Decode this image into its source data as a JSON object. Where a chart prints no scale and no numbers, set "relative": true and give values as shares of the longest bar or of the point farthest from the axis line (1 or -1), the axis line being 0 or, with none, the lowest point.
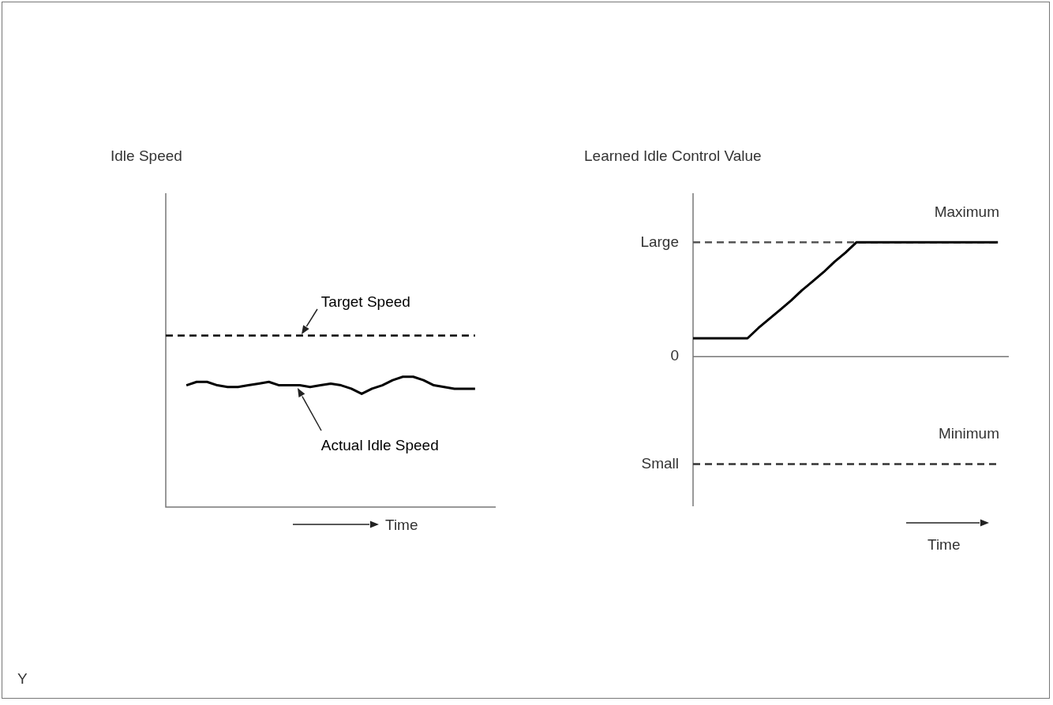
{
  "chart_data": [
    {
      "type": "line",
      "title": "Idle Speed",
      "xlabel": "Time",
      "relative": true,
      "marker": "none",
      "legend": false,
      "annotations": [
        "Y"
      ],
      "categories": [
        null,
        null,
        null,
        null,
        null,
        null,
        null,
        null,
        null,
        null,
        null,
        null,
        null,
        null,
        null,
        null,
        null,
        null,
        null,
        null,
        null,
        null,
        null,
        null,
        null,
        null,
        null,
        null,
        null,
        null,
        null,
        null,
        null
      ],
      "series": [
        {
          "name": "Target Speed",
          "color": "#000000",
          "line_style": "dashed",
          "values": [
            1,
            1,
            1,
            1,
            1,
            1,
            1,
            1,
            1,
            1,
            1,
            1,
            1,
            1,
            1,
            1,
            1,
            1,
            1,
            1,
            1,
            1,
            1,
            1,
            1,
            1,
            1,
            1,
            1,
            1,
            1,
            null,
            null
          ]
        },
        {
          "name": "Actual Idle Speed",
          "color": "#000000",
          "line_style": "solid",
          "values": [
            null,
            null,
            0.71,
            0.73,
            0.73,
            0.71,
            0.7,
            0.7,
            0.71,
            0.72,
            0.73,
            0.71,
            0.71,
            0.71,
            0.7,
            0.71,
            0.72,
            0.71,
            0.69,
            0.66,
            0.69,
            0.71,
            0.74,
            0.76,
            0.76,
            0.74,
            0.71,
            0.7,
            0.69,
            0.69,
            0.69,
            null,
            null
          ]
        }
      ]
    },
    {
      "type": "line",
      "title": "Learned Idle Control Value",
      "xlabel": "Time",
      "relative": true,
      "marker": "none",
      "legend": false,
      "categories": [
        null,
        null,
        null,
        null,
        null,
        null,
        null,
        null,
        null,
        null,
        null,
        null,
        null,
        null,
        null,
        null,
        null,
        null,
        null,
        null,
        null,
        null,
        null,
        null,
        null,
        null,
        null,
        null,
        null,
        null
      ],
      "series": [
        {
          "color": "#000000",
          "values": [
            0.16,
            0.16,
            0.16,
            0.16,
            0.16,
            0.16,
            0.25,
            0.33,
            0.41,
            0.49,
            0.58,
            0.66,
            0.74,
            0.83,
            0.91,
            1,
            1,
            1,
            1,
            1,
            1,
            1,
            1,
            1,
            1,
            1,
            1,
            1,
            1,
            null
          ]
        }
      ],
      "ref_lines": [
        {
          "axis": "y",
          "value": 1,
          "label": "Large",
          "color": "#555555",
          "line_style": "dashed"
        },
        {
          "axis": "y",
          "value": 0,
          "label": "0",
          "color": "#777777",
          "line_style": "solid"
        },
        {
          "axis": "y",
          "value": -0.94,
          "label": "Small",
          "color": "#333333",
          "line_style": "dashed"
        }
      ],
      "annotations": [
        {
          "text": "Maximum",
          "y": 1
        },
        {
          "text": "Minimum",
          "y": -0.94
        }
      ]
    }
  ]
}
